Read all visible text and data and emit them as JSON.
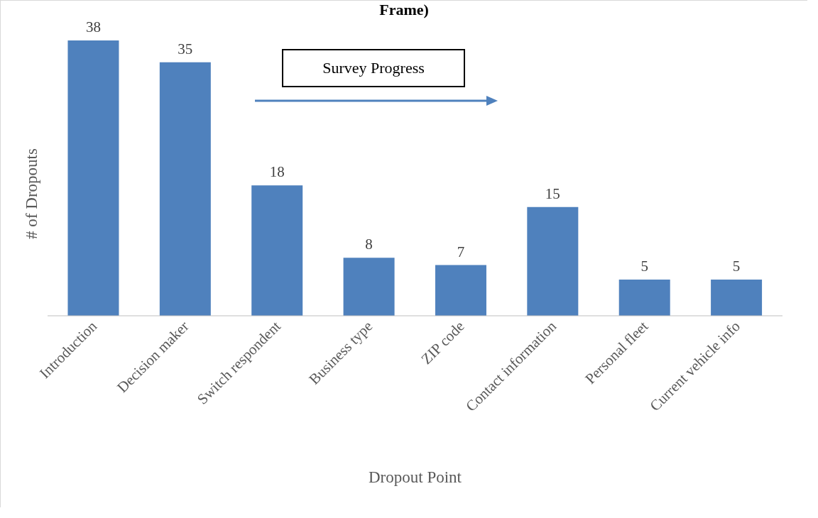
{
  "chart_data": {
    "type": "bar",
    "title": "Frame)",
    "xlabel": "Dropout Point",
    "ylabel": "# of Dropouts",
    "categories": [
      "Introduction",
      "Decision maker",
      "Switch respondent",
      "Business type",
      "ZIP code",
      "Contact information",
      "Personal fleet",
      "Current vehicle info"
    ],
    "values": [
      38,
      35,
      18,
      8,
      7,
      15,
      5,
      5
    ],
    "color": "#4f81bd",
    "data_labels": true,
    "annotations": [
      "Survey Progress"
    ]
  }
}
